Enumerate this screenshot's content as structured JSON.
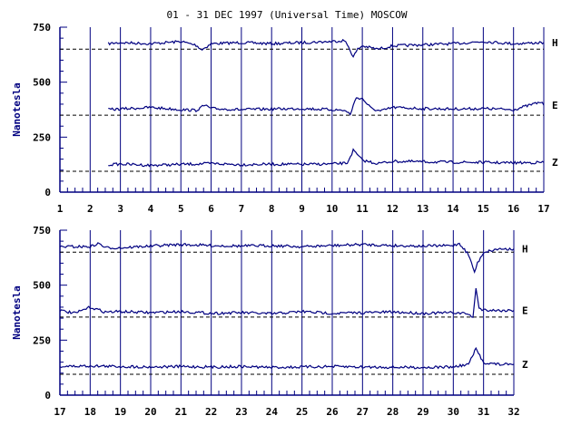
{
  "title": "01 - 31 DEC 1997 (Universal Time) MOSCOW",
  "colors": {
    "trace": "#000080",
    "axis": "#000080",
    "reference": "#000000"
  },
  "chart_data": [
    {
      "type": "line",
      "panel": "top",
      "ylabel": "Nanotesla",
      "ylim": [
        0,
        750
      ],
      "yticks": [
        0,
        250,
        500,
        750
      ],
      "xlim": [
        1,
        17
      ],
      "xticks": [
        1,
        2,
        3,
        4,
        5,
        6,
        7,
        8,
        9,
        10,
        11,
        12,
        13,
        14,
        15,
        16,
        17
      ],
      "grid": "vertical",
      "series": [
        {
          "name": "H",
          "reference": 650,
          "x": [
            2.6,
            3,
            4,
            5,
            5.5,
            5.7,
            6,
            7,
            8,
            9,
            10,
            10.4,
            10.55,
            10.7,
            10.85,
            11,
            11.5,
            12,
            13,
            14,
            15,
            16,
            17
          ],
          "y": [
            675,
            680,
            675,
            685,
            668,
            648,
            675,
            680,
            675,
            680,
            685,
            690,
            660,
            615,
            650,
            665,
            650,
            665,
            670,
            675,
            685,
            675,
            680
          ]
        },
        {
          "name": "E",
          "reference": 350,
          "x": [
            2.6,
            3,
            4,
            5,
            5.5,
            5.8,
            6,
            7,
            8,
            9,
            10,
            10.4,
            10.6,
            10.8,
            11,
            11.3,
            11.6,
            12,
            13,
            14,
            15,
            16,
            16.9,
            17
          ],
          "y": [
            375,
            378,
            385,
            375,
            372,
            395,
            380,
            375,
            378,
            380,
            375,
            372,
            355,
            430,
            425,
            380,
            368,
            385,
            380,
            378,
            380,
            375,
            410,
            395
          ]
        },
        {
          "name": "Z",
          "reference": 95,
          "x": [
            2.6,
            3,
            4,
            5,
            6,
            7,
            8,
            9,
            10,
            10.5,
            10.7,
            11,
            11.5,
            12,
            13,
            14,
            15,
            16,
            17
          ],
          "y": [
            125,
            128,
            122,
            126,
            130,
            125,
            127,
            126,
            128,
            132,
            190,
            145,
            130,
            140,
            138,
            136,
            135,
            133,
            135
          ]
        }
      ]
    },
    {
      "type": "line",
      "panel": "bottom",
      "ylabel": "Nanotesla",
      "ylim": [
        0,
        750
      ],
      "yticks": [
        0,
        250,
        500,
        750
      ],
      "xlim": [
        17,
        32
      ],
      "xticks": [
        17,
        18,
        19,
        20,
        21,
        22,
        23,
        24,
        25,
        26,
        27,
        28,
        29,
        30,
        31,
        32
      ],
      "grid": "vertical",
      "series": [
        {
          "name": "H",
          "reference": 650,
          "x": [
            17,
            18,
            18.3,
            18.5,
            19,
            20,
            21,
            22,
            23,
            24,
            25,
            26,
            27,
            28,
            29,
            30,
            30.2,
            30.5,
            30.7,
            30.8,
            31,
            31.5,
            32
          ],
          "y": [
            675,
            675,
            690,
            670,
            670,
            678,
            685,
            680,
            678,
            680,
            675,
            680,
            685,
            680,
            678,
            680,
            690,
            640,
            560,
            600,
            650,
            665,
            665
          ]
        },
        {
          "name": "E",
          "reference": 355,
          "x": [
            17,
            17.5,
            18,
            18.5,
            19,
            20,
            21,
            22,
            23,
            24,
            25,
            26,
            27,
            28,
            29,
            30,
            30.5,
            30.65,
            30.75,
            30.85,
            31,
            31.5,
            32
          ],
          "y": [
            385,
            372,
            400,
            378,
            380,
            375,
            380,
            372,
            375,
            370,
            380,
            372,
            375,
            378,
            372,
            375,
            370,
            350,
            490,
            395,
            388,
            385,
            385
          ]
        },
        {
          "name": "Z",
          "reference": 95,
          "x": [
            17,
            18,
            19,
            20,
            21,
            22,
            23,
            24,
            25,
            26,
            27,
            28,
            29,
            30,
            30.5,
            30.75,
            31,
            31.5,
            32
          ],
          "y": [
            130,
            133,
            130,
            128,
            130,
            128,
            130,
            126,
            128,
            130,
            128,
            127,
            126,
            128,
            140,
            210,
            148,
            140,
            140
          ]
        }
      ]
    }
  ]
}
